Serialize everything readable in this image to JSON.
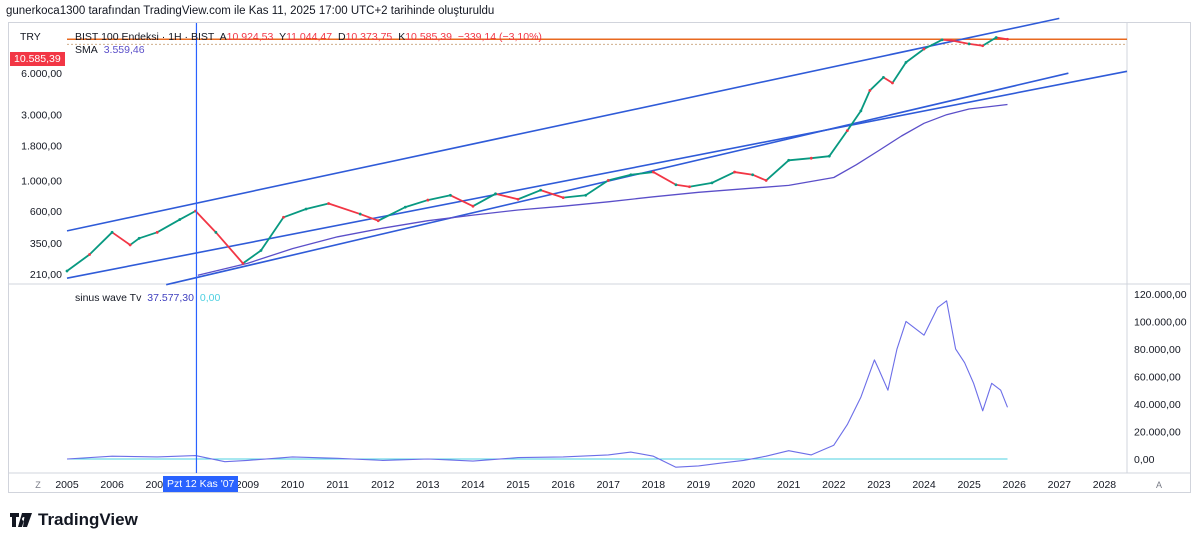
{
  "credit": "gunerkoca1300 tarafından TradingView.com ile Kas 11, 2025 17:00 UTC+2 tarihinde oluşturuldu",
  "currency": "TRY",
  "symbol": {
    "name": "BIST 100 Endeksi · 1H · BIST",
    "open_label": "A",
    "open": "10.924,53",
    "high_label": "Y",
    "high": "11.044,47",
    "low_label": "D",
    "low": "10.373,75",
    "close_label": "K",
    "close": "10.585,39",
    "change": "−339,14 (−3,10%)"
  },
  "sma": {
    "label": "SMA",
    "value": "3.559,46"
  },
  "current_price_label": "10.585,39",
  "indicator": {
    "name": "sinus wave Tv",
    "value1": "37.577,30",
    "value2": "0,00"
  },
  "crosshair_label": "Pzt 12 Kas '07",
  "buttons": {
    "z": "Z",
    "a": "A"
  },
  "brand": "TradingView",
  "colors": {
    "candle_up": "#089981",
    "candle_down": "#f23645",
    "sma": "#5b4fc9",
    "trend": "#2f5bd8",
    "price_line": "#e8691f",
    "wave": "#6c6ee8",
    "zero": "#4dd0e1",
    "crosshair": "#2962ff"
  },
  "chart_data": [
    {
      "type": "line",
      "title": "BIST 100 Endeksi · 1H · BIST",
      "yscale": "log",
      "ylim": [
        180,
        13000
      ],
      "x_range": [
        2005,
        2028.5
      ],
      "price_axis_ticks": [
        "10.585,39",
        "6.000,00",
        "3.000,00",
        "1.800,00",
        "1.000,00",
        "600,00",
        "350,00",
        "210,00"
      ],
      "price_tick_values": [
        10585,
        6000,
        3000,
        1800,
        1000,
        600,
        350,
        210
      ],
      "x_tick_labels": [
        "2005",
        "2006",
        "2007",
        "2008",
        "2009",
        "2010",
        "2011",
        "2012",
        "2013",
        "2014",
        "2015",
        "2016",
        "2017",
        "2018",
        "2019",
        "2020",
        "2021",
        "2022",
        "2023",
        "2024",
        "2025",
        "2026",
        "2027",
        "2028"
      ],
      "series": [
        {
          "name": "BIST 100",
          "x": [
            2005.0,
            2005.5,
            2006.0,
            2006.4,
            2006.6,
            2007.0,
            2007.5,
            2007.85,
            2008.3,
            2008.9,
            2009.3,
            2009.8,
            2010.3,
            2010.8,
            2011.5,
            2011.9,
            2012.5,
            2013.0,
            2013.5,
            2014.0,
            2014.5,
            2015.0,
            2015.5,
            2016.0,
            2016.5,
            2017.0,
            2017.5,
            2018.0,
            2018.5,
            2018.8,
            2019.3,
            2019.8,
            2020.2,
            2020.5,
            2021.0,
            2021.5,
            2021.9,
            2022.3,
            2022.6,
            2022.8,
            2023.1,
            2023.3,
            2023.6,
            2024.0,
            2024.4,
            2024.6,
            2025.0,
            2025.3,
            2025.6,
            2025.85
          ],
          "values": [
            220,
            290,
            420,
            340,
            380,
            420,
            520,
            600,
            420,
            250,
            310,
            540,
            620,
            680,
            570,
            510,
            640,
            720,
            780,
            650,
            800,
            730,
            850,
            750,
            780,
            1000,
            1100,
            1150,
            930,
            900,
            960,
            1150,
            1100,
            1000,
            1400,
            1450,
            1500,
            2300,
            3200,
            4500,
            5600,
            5100,
            7200,
            9000,
            10500,
            10400,
            9800,
            9500,
            10900,
            10585
          ]
        },
        {
          "name": "SMA",
          "x": [
            2007.9,
            2009.0,
            2010.0,
            2011.0,
            2012.0,
            2013.0,
            2014.0,
            2015.0,
            2016.0,
            2017.0,
            2018.0,
            2019.0,
            2020.0,
            2021.0,
            2022.0,
            2022.5,
            2023.0,
            2023.5,
            2024.0,
            2024.5,
            2025.0,
            2025.5,
            2025.85
          ],
          "values": [
            205,
            250,
            320,
            390,
            450,
            510,
            560,
            610,
            650,
            700,
            760,
            820,
            870,
            920,
            1050,
            1300,
            1650,
            2100,
            2600,
            3000,
            3300,
            3450,
            3559
          ]
        },
        {
          "name": "Trend channel upper",
          "x": [
            2005.0,
            2027.0
          ],
          "values": [
            430,
            15000
          ]
        },
        {
          "name": "Trend channel lower",
          "x": [
            2007.2,
            2027.2
          ],
          "values": [
            175,
            6000
          ]
        },
        {
          "name": "Trend line",
          "x": [
            2005.0,
            2028.5
          ],
          "values": [
            195,
            6200
          ]
        }
      ]
    },
    {
      "type": "line",
      "title": "sinus wave Tv",
      "ylim": [
        -8000,
        125000
      ],
      "axis_ticks": [
        "120.000,00",
        "100.000,00",
        "80.000,00",
        "60.000,00",
        "40.000,00",
        "20.000,00",
        "0,00"
      ],
      "axis_tick_values": [
        120000,
        100000,
        80000,
        60000,
        40000,
        20000,
        0
      ],
      "series": [
        {
          "name": "sinus wave Tv",
          "x": [
            2005.0,
            2006.0,
            2007.0,
            2007.85,
            2008.5,
            2009.0,
            2010.0,
            2011.0,
            2012.0,
            2013.0,
            2014.0,
            2015.0,
            2016.0,
            2017.0,
            2017.5,
            2018.0,
            2018.5,
            2019.0,
            2019.5,
            2020.0,
            2020.5,
            2021.0,
            2021.5,
            2022.0,
            2022.3,
            2022.6,
            2022.9,
            2023.0,
            2023.2,
            2023.4,
            2023.6,
            2023.8,
            2024.0,
            2024.3,
            2024.5,
            2024.7,
            2024.9,
            2025.1,
            2025.3,
            2025.5,
            2025.7,
            2025.85
          ],
          "values": [
            0,
            2000,
            1500,
            2500,
            -2000,
            -1000,
            1500,
            500,
            -1000,
            0,
            -1500,
            1000,
            1500,
            3000,
            5000,
            2000,
            -6000,
            -5000,
            -3000,
            -1000,
            2000,
            6000,
            3000,
            10000,
            25000,
            45000,
            72000,
            65000,
            50000,
            80000,
            100000,
            95000,
            90000,
            110000,
            115000,
            80000,
            70000,
            55000,
            35000,
            55000,
            50000,
            37577
          ]
        },
        {
          "name": "Zero line",
          "x": [
            2005.0,
            2025.85
          ],
          "values": [
            0,
            0
          ]
        }
      ]
    }
  ]
}
